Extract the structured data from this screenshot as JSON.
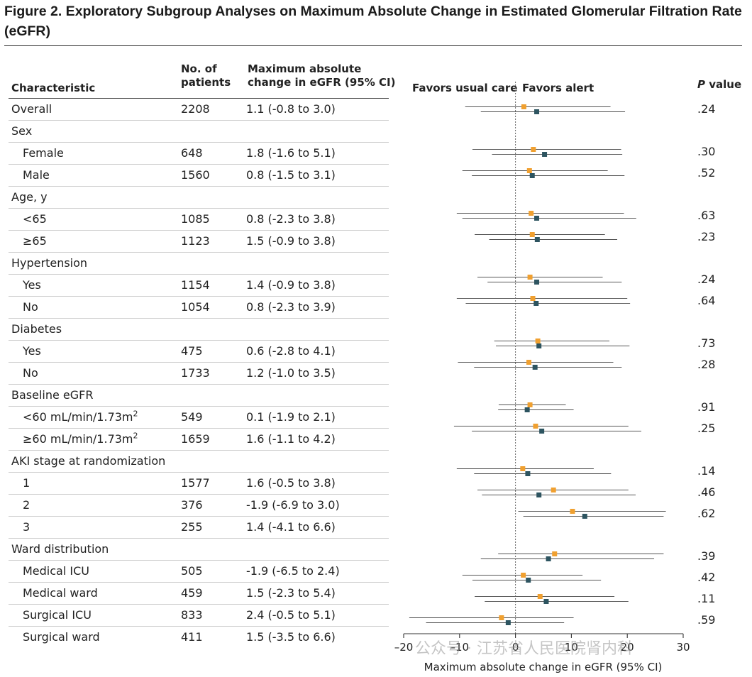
{
  "title": "Figure 2. Exploratory Subgroup Analyses on Maximum Absolute Change in Estimated Glomerular Filtration Rate (eGFR)",
  "headers": {
    "characteristic": "Characteristic",
    "n_line1": "No. of",
    "n_line2": "patients",
    "change_line1": "Maximum absolute",
    "change_line2": "change in eGFR (95% CI)",
    "favors_left": "Favors usual care",
    "favors_right": "Favors alert",
    "p_italic": "P",
    "p_rest": " value"
  },
  "rows": [
    {
      "label": "Overall",
      "n": "2208",
      "ci": "1.1 (-0.8 to 3.0)",
      "p": ".24",
      "sub": false
    },
    {
      "label": "Sex",
      "n": "",
      "ci": "",
      "p": "",
      "sub": false
    },
    {
      "label": "Female",
      "n": "648",
      "ci": "1.8 (-1.6 to 5.1)",
      "p": ".30",
      "sub": true
    },
    {
      "label": "Male",
      "n": "1560",
      "ci": "0.8 (-1.5 to 3.1)",
      "p": ".52",
      "sub": true
    },
    {
      "label": "Age, y",
      "n": "",
      "ci": "",
      "p": "",
      "sub": false
    },
    {
      "label": "<65",
      "n": "1085",
      "ci": "0.8 (-2.3 to 3.8)",
      "p": ".63",
      "sub": true
    },
    {
      "label": "≥65",
      "n": "1123",
      "ci": "1.5 (-0.9 to 3.8)",
      "p": ".23",
      "sub": true
    },
    {
      "label": "Hypertension",
      "n": "",
      "ci": "",
      "p": "",
      "sub": false
    },
    {
      "label": "Yes",
      "n": "1154",
      "ci": "1.4 (-0.9 to 3.8)",
      "p": ".24",
      "sub": true
    },
    {
      "label": "No",
      "n": "1054",
      "ci": "0.8 (-2.3 to 3.9)",
      "p": ".64",
      "sub": true
    },
    {
      "label": "Diabetes",
      "n": "",
      "ci": "",
      "p": "",
      "sub": false
    },
    {
      "label": "Yes",
      "n": "475",
      "ci": "0.6 (-2.8 to 4.1)",
      "p": ".73",
      "sub": true
    },
    {
      "label": "No",
      "n": "1733",
      "ci": "1.2 (-1.0 to 3.5)",
      "p": ".28",
      "sub": true
    },
    {
      "label": "Baseline eGFR",
      "n": "",
      "ci": "",
      "p": "",
      "sub": false
    },
    {
      "label": "<60 mL/min/1.73m",
      "sup": "2",
      "n": "549",
      "ci": "0.1 (-1.9 to 2.1)",
      "p": ".91",
      "sub": true
    },
    {
      "label": "≥60 mL/min/1.73m",
      "sup": "2",
      "n": "1659",
      "ci": "1.6 (-1.1 to 4.2)",
      "p": ".25",
      "sub": true
    },
    {
      "label": "AKI stage at randomization",
      "n": "",
      "ci": "",
      "p": "",
      "sub": false
    },
    {
      "label": "1",
      "n": "1577",
      "ci": "1.6 (-0.5 to 3.8)",
      "p": ".14",
      "sub": true
    },
    {
      "label": "2",
      "n": "376",
      "ci": "-1.9 (-6.9 to 3.0)",
      "p": ".46",
      "sub": true
    },
    {
      "label": "3",
      "n": "255",
      "ci": "1.4 (-4.1 to 6.6)",
      "p": ".62",
      "sub": true
    },
    {
      "label": "Ward distribution",
      "n": "",
      "ci": "",
      "p": "",
      "sub": false
    },
    {
      "label": "Medical ICU",
      "n": "505",
      "ci": "-1.9 (-6.5 to 2.4)",
      "p": ".39",
      "sub": true
    },
    {
      "label": "Medical ward",
      "n": "459",
      "ci": "1.5 (-2.3 to 5.4)",
      "p": ".42",
      "sub": true
    },
    {
      "label": "Surgical ICU",
      "n": "833",
      "ci": "2.4 (-0.5 to 5.1)",
      "p": ".11",
      "sub": true
    },
    {
      "label": "Surgical ward",
      "n": "411",
      "ci": "1.5 (-3.5 to 6.6)",
      "p": ".59",
      "sub": true
    }
  ],
  "chart_data": {
    "type": "forest",
    "xlabel": "Maximum absolute change in eGFR (95% CI)",
    "xlim": [
      -20,
      30
    ],
    "xticks": [
      -20,
      -10,
      0,
      10,
      20,
      30
    ],
    "reference_line": 0,
    "colors": {
      "series_a": "#f0a030",
      "series_b": "#2d5460",
      "ci_line": "#555555"
    },
    "series": [
      {
        "marker_color": "#f0a030",
        "estimates": [
          {
            "row": 0,
            "point": 1.5,
            "lower": -9.0,
            "upper": 17.0
          },
          {
            "row": 2,
            "point": 3.2,
            "lower": -7.7,
            "upper": 18.9
          },
          {
            "row": 3,
            "point": 2.5,
            "lower": -9.5,
            "upper": 16.5
          },
          {
            "row": 5,
            "point": 2.8,
            "lower": -10.5,
            "upper": 19.4
          },
          {
            "row": 6,
            "point": 3.0,
            "lower": -7.3,
            "upper": 16.0
          },
          {
            "row": 8,
            "point": 2.6,
            "lower": -6.8,
            "upper": 15.6
          },
          {
            "row": 9,
            "point": 3.1,
            "lower": -10.5,
            "upper": 20.0
          },
          {
            "row": 11,
            "point": 4.0,
            "lower": -3.8,
            "upper": 16.8
          },
          {
            "row": 12,
            "point": 2.4,
            "lower": -10.3,
            "upper": 17.5
          },
          {
            "row": 14,
            "point": 2.6,
            "lower": -3.0,
            "upper": 9.0
          },
          {
            "row": 15,
            "point": 3.6,
            "lower": -11.0,
            "upper": 20.2
          },
          {
            "row": 17,
            "point": 1.3,
            "lower": -10.5,
            "upper": 14.0
          },
          {
            "row": 18,
            "point": 6.8,
            "lower": -6.8,
            "upper": 20.2
          },
          {
            "row": 19,
            "point": 10.2,
            "lower": 0.5,
            "upper": 26.9
          },
          {
            "row": 21,
            "point": 7.0,
            "lower": -3.1,
            "upper": 26.5
          },
          {
            "row": 22,
            "point": 1.4,
            "lower": -9.5,
            "upper": 12.0
          },
          {
            "row": 23,
            "point": 4.4,
            "lower": -7.3,
            "upper": 17.7
          },
          {
            "row": 24,
            "point": -2.5,
            "lower": -19.0,
            "upper": 10.4
          }
        ]
      },
      {
        "marker_color": "#2d5460",
        "estimates": [
          {
            "row": 0,
            "point": 3.8,
            "lower": -6.2,
            "upper": 19.6
          },
          {
            "row": 2,
            "point": 5.2,
            "lower": -4.2,
            "upper": 19.1
          },
          {
            "row": 3,
            "point": 3.0,
            "lower": -7.8,
            "upper": 19.5
          },
          {
            "row": 5,
            "point": 3.8,
            "lower": -9.5,
            "upper": 21.6
          },
          {
            "row": 6,
            "point": 3.9,
            "lower": -4.7,
            "upper": 18.2
          },
          {
            "row": 8,
            "point": 3.8,
            "lower": -5.0,
            "upper": 19.0
          },
          {
            "row": 9,
            "point": 3.7,
            "lower": -8.9,
            "upper": 20.5
          },
          {
            "row": 11,
            "point": 4.2,
            "lower": -3.5,
            "upper": 20.4
          },
          {
            "row": 12,
            "point": 3.5,
            "lower": -7.4,
            "upper": 19.0
          },
          {
            "row": 14,
            "point": 2.1,
            "lower": -3.1,
            "upper": 10.4
          },
          {
            "row": 15,
            "point": 4.7,
            "lower": -7.8,
            "upper": 22.5
          },
          {
            "row": 17,
            "point": 2.2,
            "lower": -7.4,
            "upper": 17.1
          },
          {
            "row": 18,
            "point": 4.2,
            "lower": -6.0,
            "upper": 21.5
          },
          {
            "row": 19,
            "point": 12.4,
            "lower": 1.4,
            "upper": 26.5
          },
          {
            "row": 21,
            "point": 5.9,
            "lower": -6.2,
            "upper": 24.8
          },
          {
            "row": 22,
            "point": 2.3,
            "lower": -7.7,
            "upper": 15.3
          },
          {
            "row": 23,
            "point": 5.5,
            "lower": -5.5,
            "upper": 20.2
          },
          {
            "row": 24,
            "point": -1.3,
            "lower": -16.0,
            "upper": 8.7
          }
        ]
      }
    ]
  },
  "watermark": "公众号 · 江苏省人民医院肾内科"
}
